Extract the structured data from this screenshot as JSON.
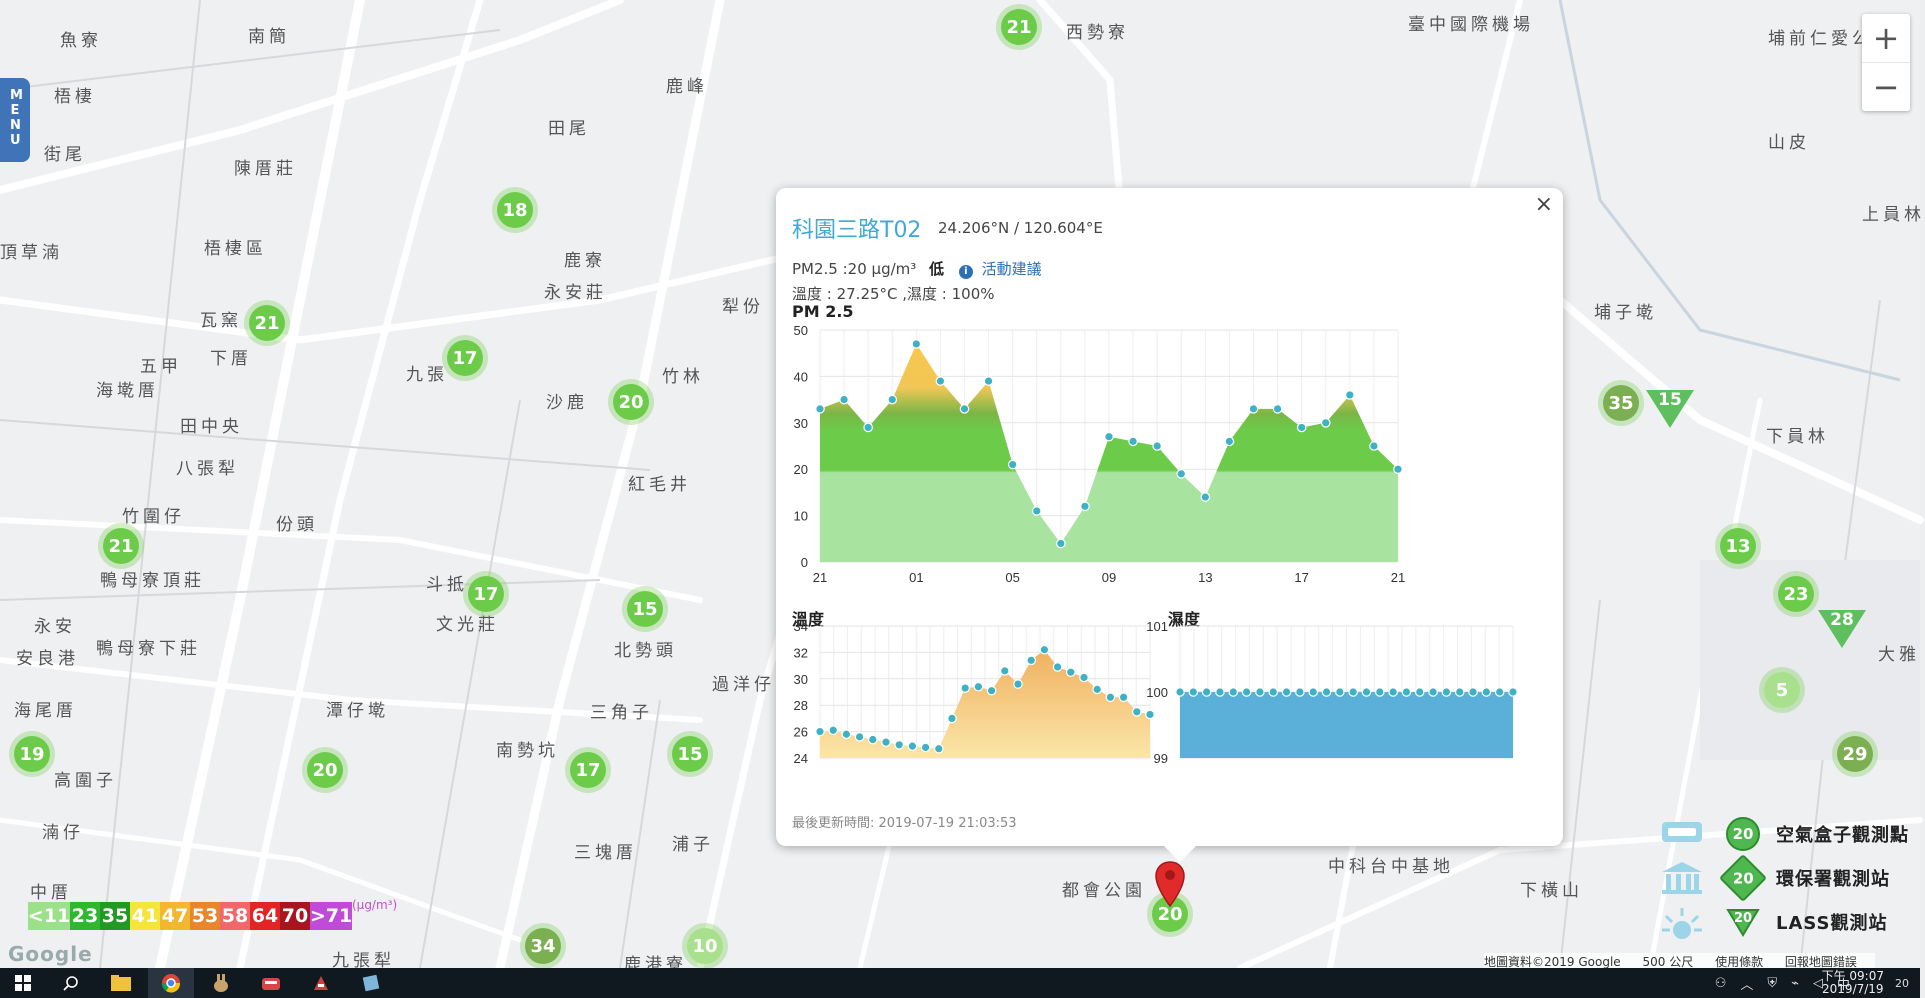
{
  "map": {
    "places": [
      {
        "text": "魚寮",
        "x": 60,
        "y": 26
      },
      {
        "text": "南簡",
        "x": 248,
        "y": 22
      },
      {
        "text": "西勢寮",
        "x": 1066,
        "y": 18
      },
      {
        "text": "臺中國際機場",
        "x": 1408,
        "y": 10
      },
      {
        "text": "埔前仁愛公園",
        "x": 1768,
        "y": 24
      },
      {
        "text": "梧棲",
        "x": 54,
        "y": 82
      },
      {
        "text": "鹿峰",
        "x": 666,
        "y": 72
      },
      {
        "text": "街尾",
        "x": 44,
        "y": 140
      },
      {
        "text": "陳厝莊",
        "x": 234,
        "y": 154
      },
      {
        "text": "田尾",
        "x": 548,
        "y": 114
      },
      {
        "text": "山皮",
        "x": 1768,
        "y": 128
      },
      {
        "text": "上員林",
        "x": 1862,
        "y": 200
      },
      {
        "text": "頂草湳",
        "x": 0,
        "y": 238
      },
      {
        "text": "梧棲區",
        "x": 204,
        "y": 234
      },
      {
        "text": "鹿寮",
        "x": 564,
        "y": 246
      },
      {
        "text": "永安莊",
        "x": 544,
        "y": 278
      },
      {
        "text": "犁份",
        "x": 722,
        "y": 292
      },
      {
        "text": "瓦窯",
        "x": 200,
        "y": 306
      },
      {
        "text": "埔子墘",
        "x": 1594,
        "y": 298
      },
      {
        "text": "五甲",
        "x": 140,
        "y": 352
      },
      {
        "text": "下厝",
        "x": 210,
        "y": 344
      },
      {
        "text": "九張",
        "x": 406,
        "y": 360
      },
      {
        "text": "竹林",
        "x": 662,
        "y": 362
      },
      {
        "text": "海墘厝",
        "x": 96,
        "y": 376
      },
      {
        "text": "沙鹿",
        "x": 546,
        "y": 388
      },
      {
        "text": "下員林",
        "x": 1766,
        "y": 422
      },
      {
        "text": "田中央",
        "x": 180,
        "y": 412
      },
      {
        "text": "八張犁",
        "x": 176,
        "y": 454
      },
      {
        "text": "紅毛井",
        "x": 628,
        "y": 470
      },
      {
        "text": "竹圍仔",
        "x": 122,
        "y": 502
      },
      {
        "text": "份頭",
        "x": 276,
        "y": 510
      },
      {
        "text": "鴨母寮頂莊",
        "x": 100,
        "y": 566
      },
      {
        "text": "斗抵",
        "x": 426,
        "y": 570
      },
      {
        "text": "文光莊",
        "x": 436,
        "y": 610
      },
      {
        "text": "永安",
        "x": 34,
        "y": 612
      },
      {
        "text": "北勢頭",
        "x": 614,
        "y": 636
      },
      {
        "text": "鴨母寮下莊",
        "x": 96,
        "y": 634
      },
      {
        "text": "過洋仔",
        "x": 712,
        "y": 670
      },
      {
        "text": "大雅",
        "x": 1878,
        "y": 640
      },
      {
        "text": "安良港",
        "x": 16,
        "y": 644
      },
      {
        "text": "海尾厝",
        "x": 14,
        "y": 696
      },
      {
        "text": "潭仔墘",
        "x": 326,
        "y": 696
      },
      {
        "text": "三角子",
        "x": 590,
        "y": 698
      },
      {
        "text": "南勢坑",
        "x": 496,
        "y": 736
      },
      {
        "text": "高圍子",
        "x": 54,
        "y": 766
      },
      {
        "text": "湳仔",
        "x": 42,
        "y": 818
      },
      {
        "text": "浦子",
        "x": 672,
        "y": 830
      },
      {
        "text": "三塊厝",
        "x": 574,
        "y": 838
      },
      {
        "text": "中科台中基地",
        "x": 1328,
        "y": 852
      },
      {
        "text": "下橫山",
        "x": 1520,
        "y": 876
      },
      {
        "text": "中厝",
        "x": 30,
        "y": 878
      },
      {
        "text": "都會公園",
        "x": 1062,
        "y": 876
      },
      {
        "text": "九張犁",
        "x": 332,
        "y": 946
      },
      {
        "text": "鹿港寮",
        "x": 624,
        "y": 950
      }
    ],
    "markers": [
      {
        "v": "21",
        "x": 1019,
        "y": 27,
        "c": "#6ccc4a"
      },
      {
        "v": "18",
        "x": 515,
        "y": 210,
        "c": "#6ccc4a"
      },
      {
        "v": "21",
        "x": 267,
        "y": 323,
        "c": "#6ccc4a"
      },
      {
        "v": "17",
        "x": 465,
        "y": 358,
        "c": "#6ccc4a"
      },
      {
        "v": "20",
        "x": 631,
        "y": 402,
        "c": "#6ccc4a"
      },
      {
        "v": "35",
        "x": 1621,
        "y": 403,
        "c": "#7cae52"
      },
      {
        "v": "13",
        "x": 1738,
        "y": 546,
        "c": "#6ccc4a"
      },
      {
        "v": "21",
        "x": 121,
        "y": 546,
        "c": "#6ccc4a"
      },
      {
        "v": "17",
        "x": 486,
        "y": 594,
        "c": "#6ccc4a"
      },
      {
        "v": "15",
        "x": 645,
        "y": 609,
        "c": "#6ccc4a"
      },
      {
        "v": "23",
        "x": 1796,
        "y": 594,
        "c": "#6ccc4a"
      },
      {
        "v": "5",
        "x": 1782,
        "y": 690,
        "c": "#a8e08e"
      },
      {
        "v": "29",
        "x": 1855,
        "y": 754,
        "c": "#7cae52"
      },
      {
        "v": "19",
        "x": 32,
        "y": 754,
        "c": "#6ccc4a"
      },
      {
        "v": "20",
        "x": 325,
        "y": 770,
        "c": "#6ccc4a"
      },
      {
        "v": "17",
        "x": 588,
        "y": 770,
        "c": "#6ccc4a"
      },
      {
        "v": "15",
        "x": 690,
        "y": 754,
        "c": "#6ccc4a"
      },
      {
        "v": "20",
        "x": 1170,
        "y": 914,
        "c": "#6ccc4a"
      },
      {
        "v": "34",
        "x": 543,
        "y": 946,
        "c": "#7cae52"
      },
      {
        "v": "10",
        "x": 705,
        "y": 946,
        "c": "#a8e08e"
      }
    ],
    "triangles": [
      {
        "v": "15",
        "x": 1670,
        "y": 390
      },
      {
        "v": "28",
        "x": 1842,
        "y": 610
      }
    ],
    "menu_label": "MENU",
    "zoom_in": "+",
    "zoom_out": "−"
  },
  "popup": {
    "close": "×",
    "title": "科園三路T02",
    "coords": "24.206°N / 120.604°E",
    "pm_text": "PM2.5 :20 μg/m³",
    "level": "低",
    "info_icon": "i",
    "advice": "活動建議",
    "temp_text": "溫度 : 27.25°C ,濕度 : 100%",
    "last_update": "最後更新時間: 2019-07-19 21:03:53"
  },
  "chart_data": [
    {
      "type": "area",
      "title": "PM 2.5",
      "x_ticks": [
        "21",
        "01",
        "05",
        "09",
        "13",
        "17",
        "21"
      ],
      "y_ticks": [
        0,
        10,
        20,
        30,
        40,
        50
      ],
      "ylim": [
        0,
        50
      ],
      "grid": true,
      "values": [
        33,
        35,
        29,
        35,
        47,
        39,
        33,
        39,
        21,
        11,
        4,
        12,
        27,
        26,
        25,
        19,
        14,
        26,
        33,
        33,
        29,
        30,
        36,
        25,
        20
      ],
      "colors": {
        "low": "#a8e3a0",
        "mid": "#6ccc4a",
        "high": "#f7c84f"
      }
    },
    {
      "type": "area",
      "title": "溫度",
      "y_ticks": [
        24,
        26,
        28,
        30,
        32,
        34
      ],
      "ylim": [
        24,
        34
      ],
      "grid": true,
      "values": [
        26.0,
        26.1,
        25.8,
        25.6,
        25.4,
        25.2,
        25.0,
        24.9,
        24.8,
        24.7,
        27.0,
        29.3,
        29.4,
        29.1,
        30.6,
        29.6,
        31.4,
        32.2,
        30.9,
        30.5,
        30.1,
        29.2,
        28.6,
        28.6,
        27.5,
        27.3
      ],
      "colors": {
        "fill": "#f8c97a",
        "line": "#5ab8c8"
      }
    },
    {
      "type": "area",
      "title": "濕度",
      "y_ticks": [
        99,
        100,
        101
      ],
      "ylim": [
        99,
        101
      ],
      "grid": true,
      "values": [
        100,
        100,
        100,
        100,
        100,
        100,
        100,
        100,
        100,
        100,
        100,
        100,
        100,
        100,
        100,
        100,
        100,
        100,
        100,
        100,
        100,
        100,
        100,
        100,
        100,
        100
      ],
      "colors": {
        "fill": "#5ab0d8",
        "line": "#5ab8c8"
      }
    }
  ],
  "legend": {
    "unit": "(μg/m³)",
    "items": [
      {
        "t": "<11",
        "c": "#9ce08a"
      },
      {
        "t": "23",
        "c": "#2eb82e"
      },
      {
        "t": "35",
        "c": "#229922"
      },
      {
        "t": "41",
        "c": "#f5e43a"
      },
      {
        "t": "47",
        "c": "#f2b62f"
      },
      {
        "t": "53",
        "c": "#e8862c"
      },
      {
        "t": "58",
        "c": "#f0686a"
      },
      {
        "t": "64",
        "c": "#e32424"
      },
      {
        "t": "70",
        "c": "#a8151f"
      },
      {
        "t": ">71",
        "c": "#c04bd8"
      }
    ],
    "stations": [
      {
        "v": "20",
        "label": "空氣盒子觀測點",
        "shape": "circle"
      },
      {
        "v": "20",
        "label": "環保署觀測站",
        "shape": "diamond"
      },
      {
        "v": "20",
        "label": "LASS觀測站",
        "shape": "triangle"
      }
    ]
  },
  "attribution": {
    "data": "地圖資料©2019 Google",
    "scale": "500 公尺",
    "terms": "使用條款",
    "report": "回報地圖錯誤",
    "logo": "Google"
  },
  "taskbar": {
    "tray_lang": "中",
    "time": "下午 09:07",
    "date": "2019/7/19",
    "notify": "20"
  }
}
